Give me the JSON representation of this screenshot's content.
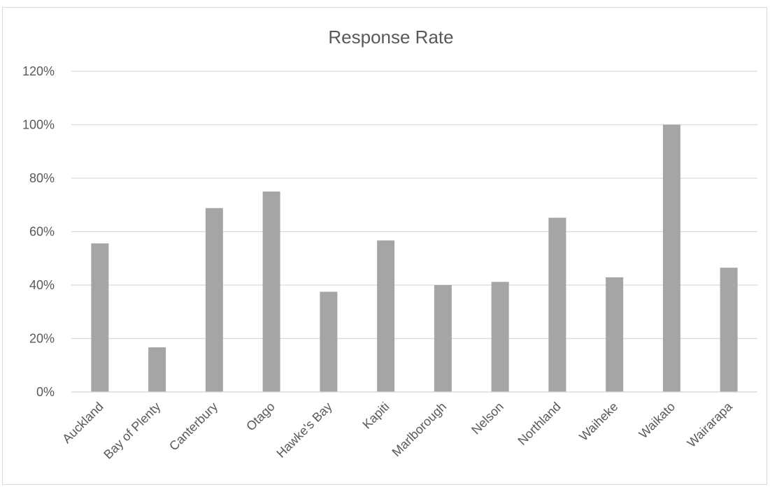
{
  "chart_data": {
    "type": "bar",
    "title": "Response Rate",
    "xlabel": "",
    "ylabel": "",
    "categories": [
      "Auckland",
      "Bay of Plenty",
      "Canterbury",
      "Otago",
      "Hawke's Bay",
      "Kapiti",
      "Marlborough",
      "Nelson",
      "Northland",
      "Waiheke",
      "Waikato",
      "Wairarapa"
    ],
    "values": [
      55.6,
      16.7,
      68.8,
      75.0,
      37.5,
      56.7,
      40.0,
      41.2,
      65.2,
      42.9,
      100.0,
      46.5
    ],
    "value_format": "percent",
    "ylim": [
      0,
      120
    ],
    "yticks": [
      0,
      20,
      40,
      60,
      80,
      100,
      120
    ],
    "ytick_labels": [
      "0%",
      "20%",
      "40%",
      "60%",
      "80%",
      "100%",
      "120%"
    ],
    "grid": true,
    "legend": "none",
    "colors": {
      "bar": "#a5a5a5",
      "gridline": "#d9d9d9",
      "text": "#595959",
      "border": "#d9d9d9"
    }
  }
}
